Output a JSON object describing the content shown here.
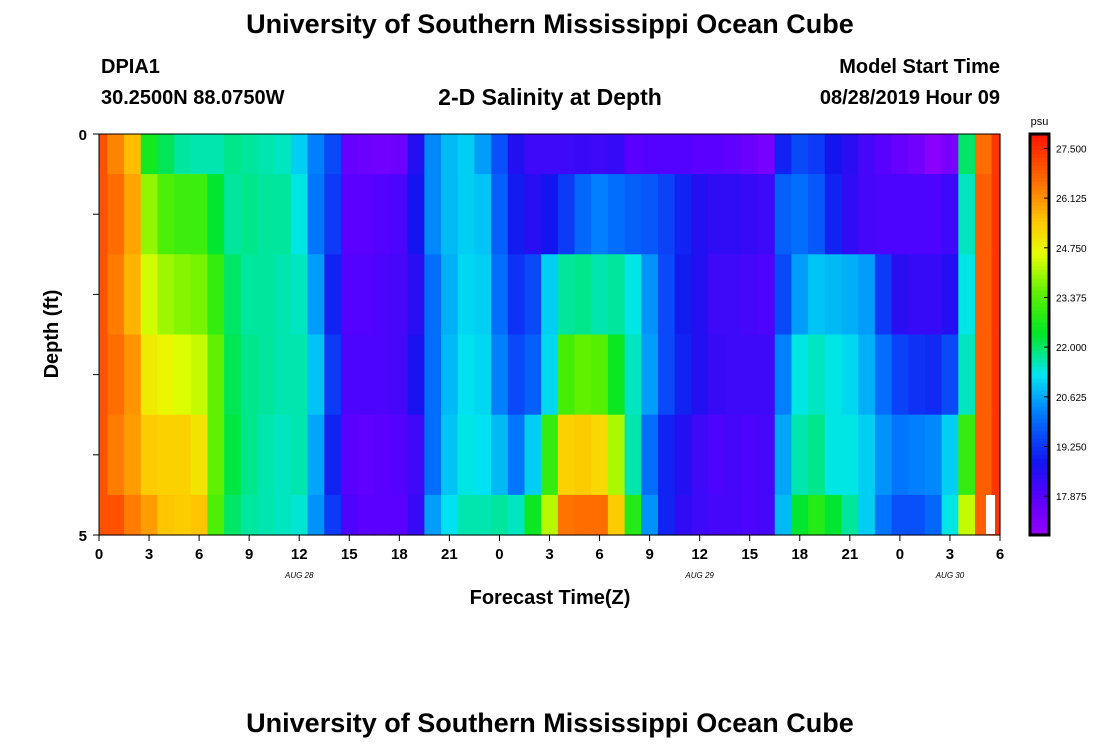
{
  "title_top": "University of Southern Mississippi Ocean Cube",
  "title_bottom": "University of Southern Mississippi Ocean Cube",
  "station": {
    "id": "DPIA1",
    "coords": "30.2500N 88.0750W"
  },
  "plot_title": "2-D Salinity at Depth",
  "model_start": {
    "label": "Model Start Time",
    "value": "08/28/2019 Hour 09"
  },
  "chart_data": {
    "type": "heatmap",
    "title": "2-D Salinity at Depth",
    "xlabel": "Forecast Time(Z)",
    "ylabel": "Depth (ft)",
    "x_tick_labels": [
      "0",
      "3",
      "6",
      "9",
      "12",
      "15",
      "18",
      "21",
      "0",
      "3",
      "6",
      "9",
      "12",
      "15",
      "18",
      "21",
      "0",
      "3",
      "6"
    ],
    "date_labels": [
      "AUG 28",
      "AUG 29",
      "AUG 30"
    ],
    "y_tick_labels": [
      "0",
      "5"
    ],
    "ylim": [
      0,
      5
    ],
    "colorbar": {
      "unit": "psu",
      "ticks": [
        "27.500",
        "26.125",
        "24.750",
        "23.375",
        "22.000",
        "20.625",
        "19.250",
        "17.875"
      ],
      "min": 16.8,
      "max": 27.9
    },
    "x_hours": [
      0,
      1,
      2,
      3,
      4,
      5,
      6,
      7,
      8,
      9,
      10,
      11,
      12,
      13,
      14,
      15,
      16,
      17,
      18,
      19,
      20,
      21,
      22,
      23,
      24,
      25,
      26,
      27,
      28,
      29,
      30,
      31,
      32,
      33,
      34,
      35,
      36,
      37,
      38,
      39,
      40,
      41,
      42,
      43,
      44,
      45,
      46,
      47,
      48,
      49,
      50,
      51,
      52,
      53,
      54
    ],
    "depth_rows": [
      "0-0.5 ft",
      "0.5-1.5 ft",
      "1.5-2.5 ft",
      "2.5-3.5 ft",
      "3.5-4.5 ft",
      "4.5-5 ft"
    ],
    "values": [
      [
        27.0,
        26.3,
        25.6,
        22.6,
        22.1,
        21.7,
        21.6,
        21.6,
        21.8,
        21.7,
        21.6,
        21.5,
        21.0,
        20.2,
        19.5,
        17.6,
        17.5,
        17.4,
        17.5,
        18.6,
        20.3,
        20.8,
        21.0,
        20.5,
        19.6,
        18.6,
        18.2,
        18.2,
        18.2,
        18.3,
        18.2,
        18.3,
        17.8,
        17.9,
        17.9,
        17.9,
        17.8,
        17.8,
        17.7,
        17.5,
        17.3,
        19.0,
        19.5,
        19.3,
        18.8,
        18.5,
        18.1,
        17.8,
        17.6,
        17.4,
        17.0,
        17.3,
        22.0,
        26.6,
        27.4
      ],
      [
        27.0,
        26.6,
        25.9,
        23.9,
        23.3,
        23.1,
        23.1,
        22.3,
        21.7,
        21.8,
        21.7,
        21.7,
        21.3,
        20.1,
        19.3,
        17.8,
        17.8,
        17.9,
        18.0,
        18.8,
        20.3,
        20.8,
        21.0,
        20.9,
        19.8,
        18.9,
        18.5,
        18.8,
        19.3,
        19.9,
        20.2,
        20.0,
        19.8,
        19.7,
        19.4,
        19.0,
        18.6,
        18.4,
        18.4,
        18.3,
        18.2,
        19.8,
        20.0,
        19.7,
        19.0,
        18.4,
        18.1,
        18.0,
        18.0,
        18.0,
        18.0,
        18.2,
        21.5,
        26.8,
        27.4
      ],
      [
        27.0,
        26.4,
        25.7,
        24.4,
        24.0,
        23.8,
        23.7,
        23.0,
        22.0,
        21.7,
        21.7,
        21.6,
        21.5,
        20.5,
        19.0,
        17.9,
        17.9,
        18.0,
        18.1,
        18.5,
        20.0,
        20.7,
        21.1,
        21.0,
        20.0,
        19.2,
        19.5,
        21.0,
        21.7,
        21.8,
        21.6,
        21.7,
        21.3,
        20.4,
        19.5,
        18.9,
        18.6,
        18.2,
        18.2,
        18.1,
        18.0,
        19.5,
        20.5,
        20.9,
        20.8,
        20.7,
        20.5,
        19.3,
        18.5,
        18.3,
        18.3,
        18.6,
        21.3,
        26.8,
        27.4
      ],
      [
        27.0,
        26.6,
        26.1,
        24.9,
        24.7,
        24.5,
        24.3,
        23.5,
        22.1,
        21.8,
        21.7,
        21.6,
        21.6,
        20.9,
        19.3,
        18.0,
        18.0,
        18.0,
        18.1,
        18.7,
        20.0,
        20.8,
        21.2,
        21.1,
        20.2,
        19.5,
        19.8,
        21.1,
        23.2,
        23.5,
        23.4,
        22.5,
        21.5,
        20.5,
        19.5,
        19.0,
        18.6,
        18.3,
        18.2,
        18.2,
        18.2,
        20.2,
        21.3,
        21.5,
        21.3,
        21.1,
        20.7,
        20.0,
        19.4,
        19.2,
        19.1,
        19.5,
        21.5,
        26.8,
        27.4
      ],
      [
        27.0,
        26.4,
        26.0,
        25.4,
        25.3,
        25.3,
        25.0,
        23.5,
        22.2,
        21.8,
        21.6,
        21.5,
        21.6,
        20.6,
        19.0,
        17.8,
        17.7,
        17.8,
        17.9,
        18.2,
        20.0,
        20.9,
        21.3,
        21.2,
        20.8,
        20.1,
        21.0,
        23.0,
        25.3,
        25.4,
        25.2,
        24.1,
        21.6,
        20.0,
        19.0,
        18.6,
        18.2,
        18.0,
        18.1,
        18.0,
        18.1,
        20.6,
        21.6,
        21.8,
        21.3,
        21.3,
        21.0,
        20.4,
        20.1,
        20.2,
        20.3,
        21.0,
        23.0,
        26.8,
        27.4
      ],
      [
        27.0,
        27.0,
        26.4,
        26.0,
        25.5,
        25.4,
        25.5,
        23.3,
        22.0,
        21.7,
        21.6,
        21.5,
        21.4,
        20.4,
        19.3,
        18.0,
        17.8,
        17.8,
        17.8,
        18.3,
        20.5,
        21.2,
        21.6,
        21.6,
        21.7,
        21.5,
        22.5,
        24.2,
        26.5,
        26.6,
        26.6,
        25.4,
        22.8,
        20.4,
        19.0,
        18.4,
        18.2,
        18.1,
        18.1,
        18.0,
        18.1,
        20.8,
        22.3,
        22.8,
        22.3,
        21.7,
        21.0,
        20.1,
        19.6,
        19.6,
        19.9,
        21.3,
        24.3,
        26.8,
        27.4
      ]
    ]
  }
}
